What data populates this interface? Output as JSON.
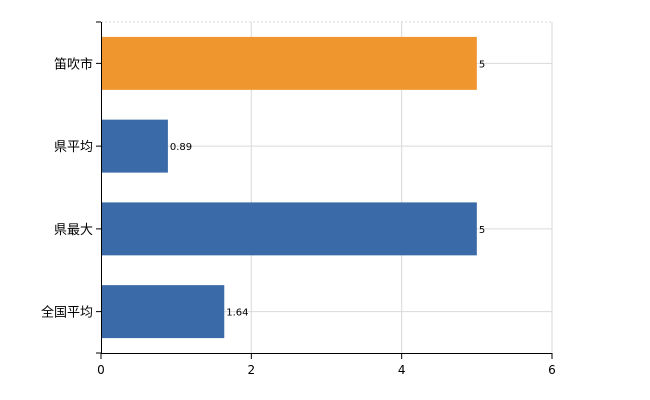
{
  "chart_data": {
    "type": "bar",
    "orientation": "horizontal",
    "categories": [
      "笛吹市",
      "県平均",
      "県最大",
      "全国平均"
    ],
    "values": [
      5,
      0.89,
      5,
      1.64
    ],
    "value_labels": [
      "5",
      "0.89",
      "5",
      "1.64"
    ],
    "colors": [
      "#f0962e",
      "#3a6aa8",
      "#3a6aa8",
      "#3a6aa8"
    ],
    "xlim": [
      0,
      6
    ],
    "xticks": [
      "0",
      "2",
      "4",
      "6"
    ],
    "xtick_values": [
      0,
      2,
      4,
      6
    ],
    "grid": true,
    "title": "",
    "xlabel": "",
    "ylabel": ""
  }
}
